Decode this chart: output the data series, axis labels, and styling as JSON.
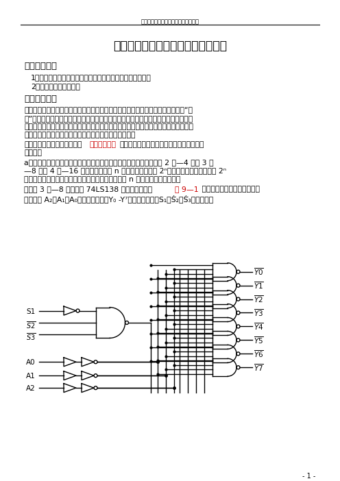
{
  "header_text": "安徽建筑工业学院计算机与信息工程系",
  "title": "实验二　　译码器、编码器及其应用",
  "section1": "一、实验目的",
  "item1": "1．掌握中规模集成译码器、编码器的逻辑功能和使用方法。",
  "item2": "2．熟悉数码管的使用。",
  "section2": "二、实验原理",
  "para1_line1": "　　译码器是一个少输入、多输出的组合逻辑电路。它的作用是把给定的代码进行“翻",
  "para1_line2": "译”，变成相应的状态，使输出通道中相应的一路有信号输出。译码器在数字系统中有",
  "para1_line3": "广泛的用途，不仅用于代码的转换、终端的数字显示，还用于数据分配、存贮器寻址和",
  "para1_line4": "组合控制信号等，不同的功能可选用不同种类的译码器。",
  "para2_black1": "　　译码器可分为通用译码器",
  "para2_red": "和专用译码器",
  "para2_black2": "两大类。前者又分为变量译码器和代码变换",
  "para2_line2": "译码器。",
  "item_a_line1": "a．变量译码器（又称二进制译码器），用以表示输入变量的状态，如 2 线—4 线、 3 线",
  "item_a_line2": "—8 线和 4 线—16 线译码器。若有 n 个输入变量，则有 2ⁿ个不同的组合状态，就有 2ⁿ",
  "item_a_line3": "个输出端供其使用。而每个输出所代表的函数对应于 n 个输入变量的最小项。",
  "para3_black1": "　　以 3 线—8 线译码器 74LS138 为例进行分析，",
  "para3_red": "图 9—1",
  "para3_black2": " 分别为其逻辑图及引脚排列。",
  "para4": "　　其中 A₂、A₁、A₀为地址输入端，Y₀ -Y⁷为译码输出端，S₁、Ś̅₂、Ś̅₃为使能端。",
  "footer": "- 1 -",
  "bg_color": "#ffffff",
  "text_color": "#000000",
  "red_color": "#cc0000"
}
